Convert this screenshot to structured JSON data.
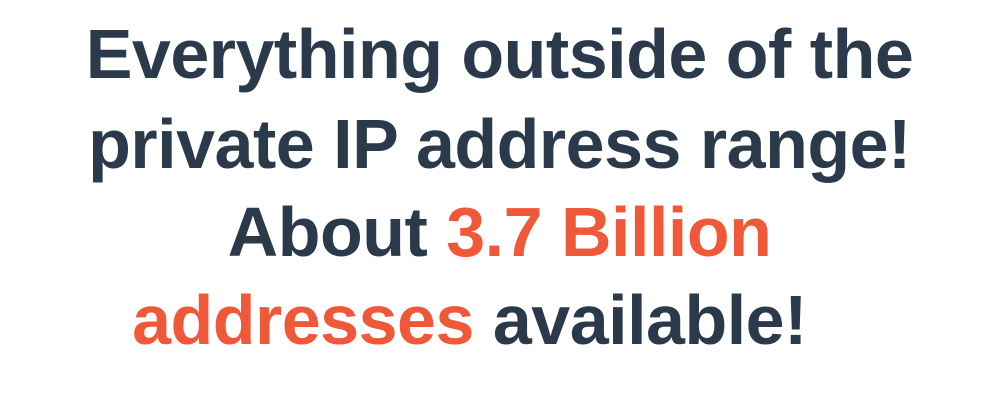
{
  "slide": {
    "lines": [
      {
        "text": "Everything outside of the"
      },
      {
        "text": "private IP address range!"
      },
      {
        "segments": [
          "About",
          "3.7 Billion"
        ]
      },
      {
        "segments": [
          "addresses",
          "available!"
        ]
      }
    ]
  }
}
